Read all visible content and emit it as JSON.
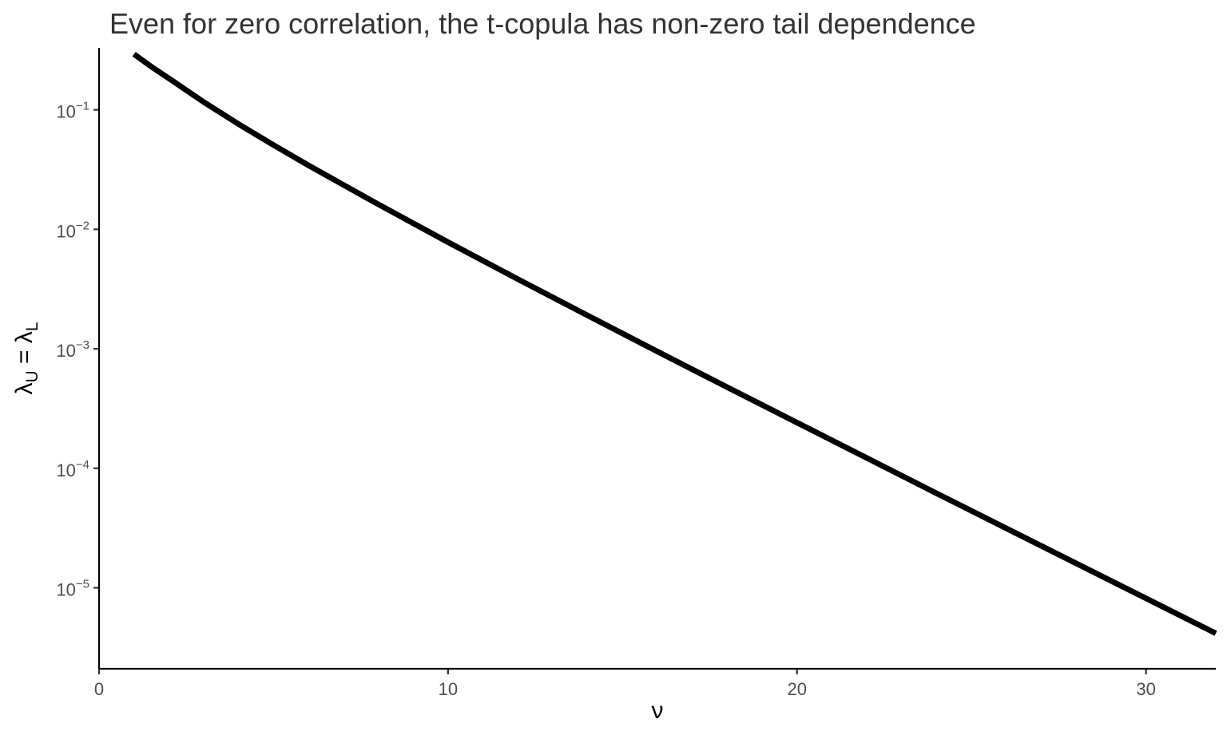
{
  "chart_data": {
    "type": "line",
    "title": "Even for zero correlation, the t-copula has non-zero tail dependence",
    "xlabel": "ν",
    "ylabel": {
      "main": "λ",
      "first_subscript": "U",
      "equals": " = ",
      "second_subscript": "L"
    },
    "x_ticks": [
      {
        "value": 0,
        "label": "0"
      },
      {
        "value": 10,
        "label": "10"
      },
      {
        "value": 20,
        "label": "20"
      },
      {
        "value": 30,
        "label": "30"
      }
    ],
    "y_ticks": [
      {
        "value": 0.1,
        "base": "10",
        "exponent": "−1"
      },
      {
        "value": 0.01,
        "base": "10",
        "exponent": "−2"
      },
      {
        "value": 0.001,
        "base": "10",
        "exponent": "−3"
      },
      {
        "value": 0.0001,
        "base": "10",
        "exponent": "−4"
      },
      {
        "value": 1e-05,
        "base": "10",
        "exponent": "−5"
      }
    ],
    "xlim": [
      0,
      32
    ],
    "ylim": [
      2.1e-06,
      0.33
    ],
    "y_scale": "log",
    "grid": false,
    "legend": "none",
    "series_color": "#000000",
    "series": [
      {
        "x": [
          1,
          1.5,
          2,
          3,
          4,
          5,
          6,
          8,
          10,
          12,
          14,
          16,
          18,
          20,
          22,
          24,
          26,
          28,
          30,
          32
        ],
        "y": [
          0.2929,
          0.2297,
          0.1835,
          0.1161,
          0.0759,
          0.0507,
          0.0343,
          0.0162,
          0.0078,
          0.00383,
          0.0019,
          0.000949,
          0.000477,
          0.000241,
          0.000122,
          6.17e-05,
          3.14e-05,
          1.6e-05,
          8.15e-06,
          4.16e-06
        ]
      }
    ]
  }
}
